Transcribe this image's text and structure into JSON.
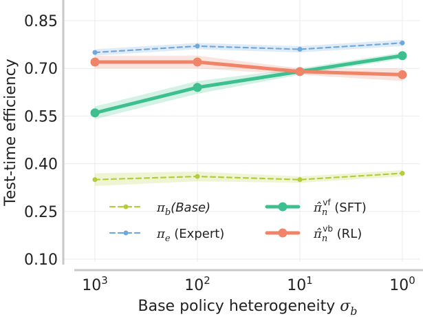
{
  "chart_data": {
    "type": "line",
    "title": "",
    "xlabel": "Base policy heterogeneity σ_b",
    "ylabel": "Test-time efficiency",
    "categories": [
      "10^3",
      "10^2",
      "10^1",
      "10^0"
    ],
    "x_tick_labels": [
      {
        "base": "10",
        "exp": "3"
      },
      {
        "base": "10",
        "exp": "2"
      },
      {
        "base": "10",
        "exp": "1"
      },
      {
        "base": "10",
        "exp": "0"
      }
    ],
    "yticks": [
      0.1,
      0.25,
      0.4,
      0.55,
      0.7,
      0.85
    ],
    "ytick_labels": [
      "0.10",
      "0.25",
      "0.40",
      "0.55",
      "0.70",
      "0.85"
    ],
    "ylim": [
      0.1,
      0.88
    ],
    "grid": true,
    "legend_position": "lower-center",
    "series": [
      {
        "name": "π_b(Base)",
        "legend_symbol": "π",
        "legend_sub": "b",
        "legend_text": "(Base)",
        "style": "dashed",
        "color": "#b5cc38",
        "values": [
          0.35,
          0.36,
          0.35,
          0.37
        ],
        "lower": [
          0.33,
          0.345,
          0.34,
          0.36
        ],
        "upper": [
          0.37,
          0.375,
          0.36,
          0.38
        ]
      },
      {
        "name": "π_e (Expert)",
        "legend_symbol": "π",
        "legend_sub": "e",
        "legend_text": " (Expert)",
        "style": "dashed",
        "color": "#6fa8dc",
        "values": [
          0.75,
          0.77,
          0.76,
          0.78
        ],
        "lower": [
          0.74,
          0.76,
          0.75,
          0.77
        ],
        "upper": [
          0.76,
          0.78,
          0.77,
          0.79
        ]
      },
      {
        "name": "π̂_n^vf (SFT)",
        "legend_symbol": "π̂",
        "legend_sub": "n",
        "legend_sup": "vf",
        "legend_text": " (SFT)",
        "style": "solid",
        "color": "#3dbf8f",
        "values": [
          0.56,
          0.64,
          0.69,
          0.74
        ],
        "lower": [
          0.54,
          0.62,
          0.68,
          0.73
        ],
        "upper": [
          0.58,
          0.66,
          0.7,
          0.75
        ]
      },
      {
        "name": "π̂_n^vb (RL)",
        "legend_symbol": "π̂",
        "legend_sub": "n",
        "legend_sup": "vb",
        "legend_text": " (RL)",
        "style": "solid",
        "color": "#ef8468",
        "values": [
          0.72,
          0.72,
          0.69,
          0.68
        ],
        "lower": [
          0.7,
          0.7,
          0.68,
          0.66
        ],
        "upper": [
          0.74,
          0.74,
          0.7,
          0.7
        ]
      }
    ]
  }
}
